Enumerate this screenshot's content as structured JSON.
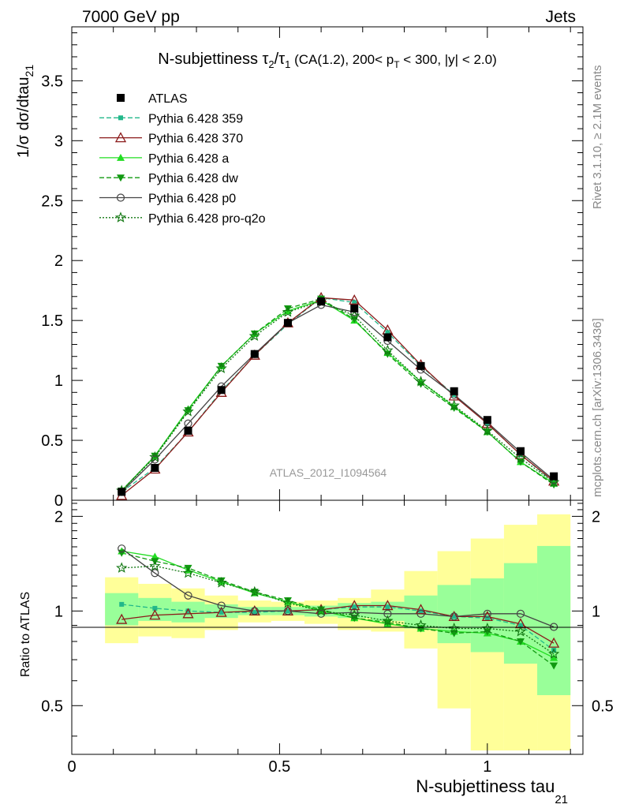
{
  "header": {
    "left": "7000 GeV pp",
    "right": "Jets",
    "side_rivet": "Rivet 3.1.10, ≥ 2.1M events",
    "side_mcplots": "mcplots.cern.ch [arXiv:1306.3436]",
    "watermark": "ATLAS_2012_I1094564"
  },
  "chart_data": {
    "type": "line",
    "title": {
      "main": "N-subjettiness ",
      "tau2": "τ",
      "sub2": "2",
      "slash": "/",
      "tau1": "τ",
      "sub1": "1",
      "rest_a": " (CA(1.2), 200< p",
      "subT": "T",
      "rest_b": " < 300, |y| < 2.0)"
    },
    "ylabel": {
      "main": "1/σ dσ/dtau",
      "sub": "21"
    },
    "xlabel": {
      "main": "N-subjettiness tau",
      "sub": "21"
    },
    "ratio_ylabel": "Ratio to ATLAS",
    "xlim": [
      0,
      1.23
    ],
    "ylim": [
      0,
      3.95
    ],
    "ratio_ylim": [
      0.35,
      2.25
    ],
    "x_ticks": [
      "0",
      "0.5",
      "1"
    ],
    "y_ticks": [
      "0.5",
      "1",
      "1.5",
      "2",
      "2.5",
      "3",
      "3.5"
    ],
    "ratio_ticks": [
      "0.5",
      "1",
      "2"
    ],
    "x": [
      0.12,
      0.2,
      0.28,
      0.36,
      0.44,
      0.52,
      0.6,
      0.68,
      0.76,
      0.84,
      0.92,
      1.0,
      1.08,
      1.16
    ],
    "bin_edges": [
      0.08,
      0.16,
      0.24,
      0.32,
      0.4,
      0.48,
      0.56,
      0.64,
      0.72,
      0.8,
      0.88,
      0.96,
      1.04,
      1.12,
      1.2
    ],
    "data": {
      "name": "ATLAS",
      "values": [
        0.07,
        0.27,
        0.58,
        0.92,
        1.22,
        1.48,
        1.66,
        1.6,
        1.36,
        1.12,
        0.91,
        0.67,
        0.41,
        0.2
      ],
      "band_inner": [
        [
          0.9,
          1.14
        ],
        [
          0.93,
          1.1
        ],
        [
          0.92,
          1.07
        ],
        [
          0.95,
          1.05
        ],
        [
          0.97,
          1.03
        ],
        [
          0.97,
          1.03
        ],
        [
          0.96,
          1.04
        ],
        [
          0.95,
          1.06
        ],
        [
          0.93,
          1.07
        ],
        [
          0.88,
          1.12
        ],
        [
          0.79,
          1.21
        ],
        [
          0.74,
          1.27
        ],
        [
          0.68,
          1.42
        ],
        [
          0.54,
          1.61
        ]
      ],
      "band_outer": [
        [
          0.79,
          1.28
        ],
        [
          0.83,
          1.22
        ],
        [
          0.82,
          1.18
        ],
        [
          0.87,
          1.12
        ],
        [
          0.92,
          1.08
        ],
        [
          0.93,
          1.07
        ],
        [
          0.91,
          1.08
        ],
        [
          0.87,
          1.1
        ],
        [
          0.86,
          1.17
        ],
        [
          0.76,
          1.34
        ],
        [
          0.49,
          1.55
        ],
        [
          0.36,
          1.7
        ],
        [
          0.36,
          1.88
        ],
        [
          0.36,
          2.03
        ]
      ]
    },
    "series": [
      {
        "name": "Pythia 6.428 359",
        "color": "#22b88a",
        "dash": "6,3",
        "marker": "square-small",
        "values": [
          0.07,
          0.27,
          0.57,
          0.91,
          1.21,
          1.47,
          1.69,
          1.65,
          1.4,
          1.12,
          0.88,
          0.64,
          0.38,
          0.15
        ],
        "ratio": [
          1.05,
          1.02,
          1.0,
          0.99,
          0.99,
          1.0,
          1.01,
          1.03,
          1.03,
          1.0,
          0.96,
          0.95,
          0.9,
          0.75
        ]
      },
      {
        "name": "Pythia 6.428 370",
        "color": "#8b1a1a",
        "dash": "",
        "marker": "triangle-open",
        "values": [
          0.04,
          0.26,
          0.57,
          0.9,
          1.21,
          1.48,
          1.69,
          1.67,
          1.42,
          1.13,
          0.87,
          0.64,
          0.38,
          0.16
        ],
        "ratio": [
          0.94,
          0.97,
          0.98,
          0.99,
          1.0,
          1.0,
          1.01,
          1.04,
          1.04,
          1.01,
          0.96,
          0.96,
          0.91,
          0.79
        ]
      },
      {
        "name": "Pythia 6.428 a",
        "color": "#22dd22",
        "dash": "",
        "marker": "triangle-filled",
        "values": [
          0.08,
          0.37,
          0.76,
          1.12,
          1.39,
          1.58,
          1.67,
          1.5,
          1.23,
          0.99,
          0.78,
          0.57,
          0.32,
          0.14
        ],
        "ratio": [
          1.55,
          1.49,
          1.35,
          1.24,
          1.14,
          1.07,
          1.0,
          0.95,
          0.91,
          0.88,
          0.86,
          0.85,
          0.8,
          0.71
        ]
      },
      {
        "name": "Pythia 6.428 dw",
        "color": "#119911",
        "dash": "6,3",
        "marker": "triangle-down",
        "values": [
          0.08,
          0.37,
          0.75,
          1.12,
          1.39,
          1.6,
          1.68,
          1.51,
          1.22,
          0.97,
          0.77,
          0.57,
          0.32,
          0.13
        ],
        "ratio": [
          1.53,
          1.44,
          1.37,
          1.25,
          1.15,
          1.08,
          1.01,
          0.95,
          0.92,
          0.88,
          0.85,
          0.86,
          0.8,
          0.67
        ]
      },
      {
        "name": "Pythia 6.428 p0",
        "color": "#444444",
        "dash": "",
        "marker": "circle-open",
        "values": [
          0.07,
          0.34,
          0.64,
          0.95,
          1.22,
          1.48,
          1.63,
          1.57,
          1.33,
          1.09,
          0.88,
          0.65,
          0.4,
          0.17
        ],
        "ratio": [
          1.58,
          1.32,
          1.12,
          1.04,
          1.0,
          1.0,
          0.98,
          0.99,
          0.98,
          0.98,
          0.96,
          0.98,
          0.98,
          0.89
        ]
      },
      {
        "name": "Pythia 6.428 pro-q2o",
        "color": "#117711",
        "dash": "2,2",
        "marker": "star",
        "values": [
          0.08,
          0.36,
          0.74,
          1.1,
          1.37,
          1.57,
          1.66,
          1.54,
          1.25,
          0.99,
          0.79,
          0.58,
          0.35,
          0.15
        ],
        "ratio": [
          1.37,
          1.39,
          1.32,
          1.23,
          1.15,
          1.06,
          1.0,
          0.97,
          0.93,
          0.9,
          0.88,
          0.88,
          0.86,
          0.73
        ]
      }
    ]
  }
}
